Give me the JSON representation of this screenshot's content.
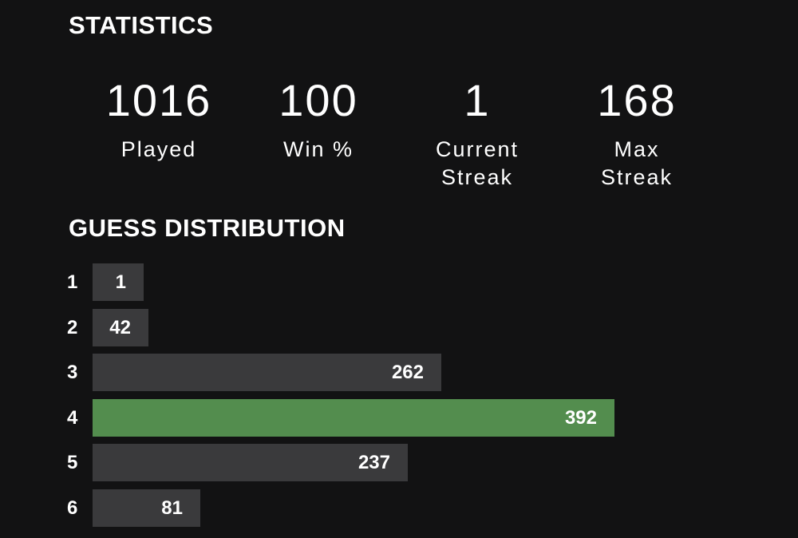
{
  "statistics": {
    "title": "STATISTICS",
    "items": [
      {
        "value": "1016",
        "label": "Played"
      },
      {
        "value": "100",
        "label": "Win %"
      },
      {
        "value": "1",
        "label": "Current\nStreak"
      },
      {
        "value": "168",
        "label": "Max\nStreak"
      }
    ]
  },
  "distribution": {
    "title": "GUESS DISTRIBUTION",
    "rows": [
      {
        "guess": "1",
        "count": "1"
      },
      {
        "guess": "2",
        "count": "42"
      },
      {
        "guess": "3",
        "count": "262"
      },
      {
        "guess": "4",
        "count": "392"
      },
      {
        "guess": "5",
        "count": "237"
      },
      {
        "guess": "6",
        "count": "81"
      }
    ],
    "highlighted_guess": "4"
  },
  "colors": {
    "background": "#121213",
    "bar_default": "#3a3a3c",
    "bar_highlight": "#538d4e",
    "text": "#ffffff"
  }
}
